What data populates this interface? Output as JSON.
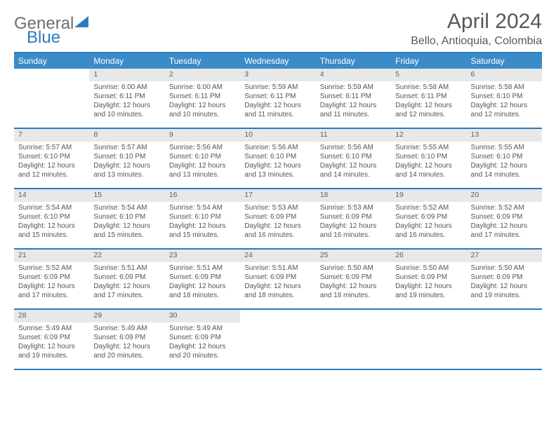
{
  "brand": {
    "part1": "General",
    "part2": "Blue"
  },
  "title": "April 2024",
  "location": "Bello, Antioquia, Colombia",
  "colors": {
    "header_bar": "#3b8bc9",
    "rule": "#2d7bbf",
    "daynum_bg": "#e8e8e8",
    "text": "#404040",
    "brand_gray": "#6e6e6e",
    "brand_blue": "#2d7bbf"
  },
  "day_names": [
    "Sunday",
    "Monday",
    "Tuesday",
    "Wednesday",
    "Thursday",
    "Friday",
    "Saturday"
  ],
  "layout": {
    "first_weekday_index": 1,
    "days_in_month": 30
  },
  "days": {
    "1": {
      "sunrise": "6:00 AM",
      "sunset": "6:11 PM",
      "daylight": "12 hours and 10 minutes."
    },
    "2": {
      "sunrise": "6:00 AM",
      "sunset": "6:11 PM",
      "daylight": "12 hours and 10 minutes."
    },
    "3": {
      "sunrise": "5:59 AM",
      "sunset": "6:11 PM",
      "daylight": "12 hours and 11 minutes."
    },
    "4": {
      "sunrise": "5:59 AM",
      "sunset": "6:11 PM",
      "daylight": "12 hours and 11 minutes."
    },
    "5": {
      "sunrise": "5:58 AM",
      "sunset": "6:11 PM",
      "daylight": "12 hours and 12 minutes."
    },
    "6": {
      "sunrise": "5:58 AM",
      "sunset": "6:10 PM",
      "daylight": "12 hours and 12 minutes."
    },
    "7": {
      "sunrise": "5:57 AM",
      "sunset": "6:10 PM",
      "daylight": "12 hours and 12 minutes."
    },
    "8": {
      "sunrise": "5:57 AM",
      "sunset": "6:10 PM",
      "daylight": "12 hours and 13 minutes."
    },
    "9": {
      "sunrise": "5:56 AM",
      "sunset": "6:10 PM",
      "daylight": "12 hours and 13 minutes."
    },
    "10": {
      "sunrise": "5:56 AM",
      "sunset": "6:10 PM",
      "daylight": "12 hours and 13 minutes."
    },
    "11": {
      "sunrise": "5:56 AM",
      "sunset": "6:10 PM",
      "daylight": "12 hours and 14 minutes."
    },
    "12": {
      "sunrise": "5:55 AM",
      "sunset": "6:10 PM",
      "daylight": "12 hours and 14 minutes."
    },
    "13": {
      "sunrise": "5:55 AM",
      "sunset": "6:10 PM",
      "daylight": "12 hours and 14 minutes."
    },
    "14": {
      "sunrise": "5:54 AM",
      "sunset": "6:10 PM",
      "daylight": "12 hours and 15 minutes."
    },
    "15": {
      "sunrise": "5:54 AM",
      "sunset": "6:10 PM",
      "daylight": "12 hours and 15 minutes."
    },
    "16": {
      "sunrise": "5:54 AM",
      "sunset": "6:10 PM",
      "daylight": "12 hours and 15 minutes."
    },
    "17": {
      "sunrise": "5:53 AM",
      "sunset": "6:09 PM",
      "daylight": "12 hours and 16 minutes."
    },
    "18": {
      "sunrise": "5:53 AM",
      "sunset": "6:09 PM",
      "daylight": "12 hours and 16 minutes."
    },
    "19": {
      "sunrise": "5:52 AM",
      "sunset": "6:09 PM",
      "daylight": "12 hours and 16 minutes."
    },
    "20": {
      "sunrise": "5:52 AM",
      "sunset": "6:09 PM",
      "daylight": "12 hours and 17 minutes."
    },
    "21": {
      "sunrise": "5:52 AM",
      "sunset": "6:09 PM",
      "daylight": "12 hours and 17 minutes."
    },
    "22": {
      "sunrise": "5:51 AM",
      "sunset": "6:09 PM",
      "daylight": "12 hours and 17 minutes."
    },
    "23": {
      "sunrise": "5:51 AM",
      "sunset": "6:09 PM",
      "daylight": "12 hours and 18 minutes."
    },
    "24": {
      "sunrise": "5:51 AM",
      "sunset": "6:09 PM",
      "daylight": "12 hours and 18 minutes."
    },
    "25": {
      "sunrise": "5:50 AM",
      "sunset": "6:09 PM",
      "daylight": "12 hours and 18 minutes."
    },
    "26": {
      "sunrise": "5:50 AM",
      "sunset": "6:09 PM",
      "daylight": "12 hours and 19 minutes."
    },
    "27": {
      "sunrise": "5:50 AM",
      "sunset": "6:09 PM",
      "daylight": "12 hours and 19 minutes."
    },
    "28": {
      "sunrise": "5:49 AM",
      "sunset": "6:09 PM",
      "daylight": "12 hours and 19 minutes."
    },
    "29": {
      "sunrise": "5:49 AM",
      "sunset": "6:09 PM",
      "daylight": "12 hours and 20 minutes."
    },
    "30": {
      "sunrise": "5:49 AM",
      "sunset": "6:09 PM",
      "daylight": "12 hours and 20 minutes."
    }
  },
  "labels": {
    "sunrise": "Sunrise:",
    "sunset": "Sunset:",
    "daylight": "Daylight:"
  }
}
